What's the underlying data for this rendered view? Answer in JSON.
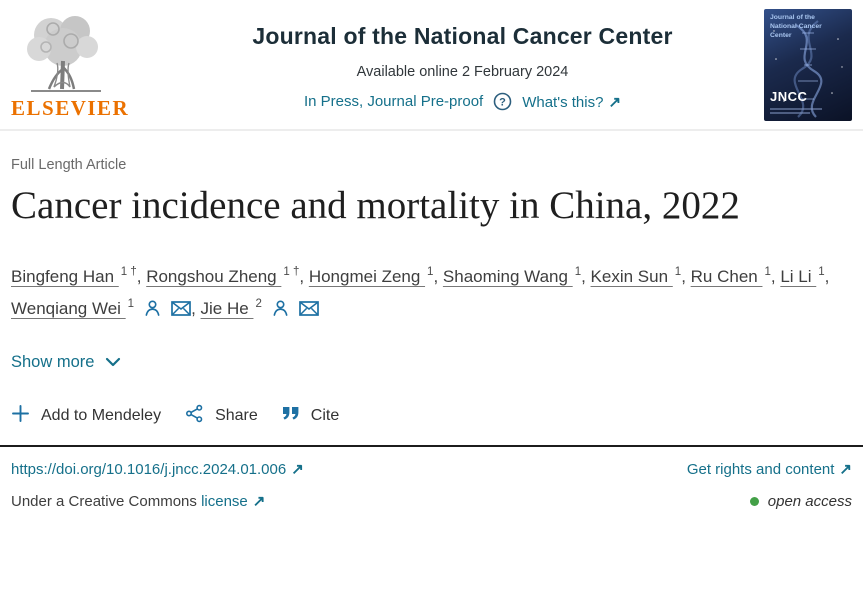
{
  "header": {
    "publisher_wordmark": "ELSEVIER",
    "journal_title": "Journal of the National Cancer Center",
    "available_online": "Available online 2 February 2024",
    "in_press_label": "In Press, Journal Pre-proof",
    "whats_this_label": "What's this?"
  },
  "cover": {
    "title": "Journal of the National Cancer Center",
    "abbrev": "JNCC"
  },
  "article": {
    "type_label": "Full Length Article",
    "title": "Cancer incidence and mortality in China, 2022",
    "show_more_label": "Show more"
  },
  "authors": [
    {
      "name": "Bingfeng Han",
      "sup": "1",
      "dagger": true
    },
    {
      "name": "Rongshou Zheng",
      "sup": "1",
      "dagger": true
    },
    {
      "name": "Hongmei Zeng",
      "sup": "1"
    },
    {
      "name": "Shaoming Wang",
      "sup": "1"
    },
    {
      "name": "Kexin Sun",
      "sup": "1"
    },
    {
      "name": "Ru Chen",
      "sup": "1"
    },
    {
      "name": "Li Li",
      "sup": "1"
    },
    {
      "name": "Wenqiang Wei",
      "sup": "1",
      "person_icon": true,
      "email_icon": true
    },
    {
      "name": "Jie He",
      "sup": "2",
      "person_icon": true,
      "email_icon": true
    }
  ],
  "actions": {
    "add_to_mendeley": "Add to Mendeley",
    "share": "Share",
    "cite": "Cite"
  },
  "links": {
    "doi": "https://doi.org/10.1016/j.jncc.2024.01.006",
    "rights": "Get rights and content",
    "license_prefix": "Under a Creative Commons",
    "license_link": "license",
    "open_access": "open access"
  },
  "icons": {
    "external_arrow": "↗",
    "dagger": "†"
  },
  "colors": {
    "link_teal": "#15708a",
    "icon_blue": "#1d70a3",
    "question_blue": "#2d5f7e",
    "elsevier_orange": "#eb7100",
    "open_access_green": "#43a047"
  }
}
